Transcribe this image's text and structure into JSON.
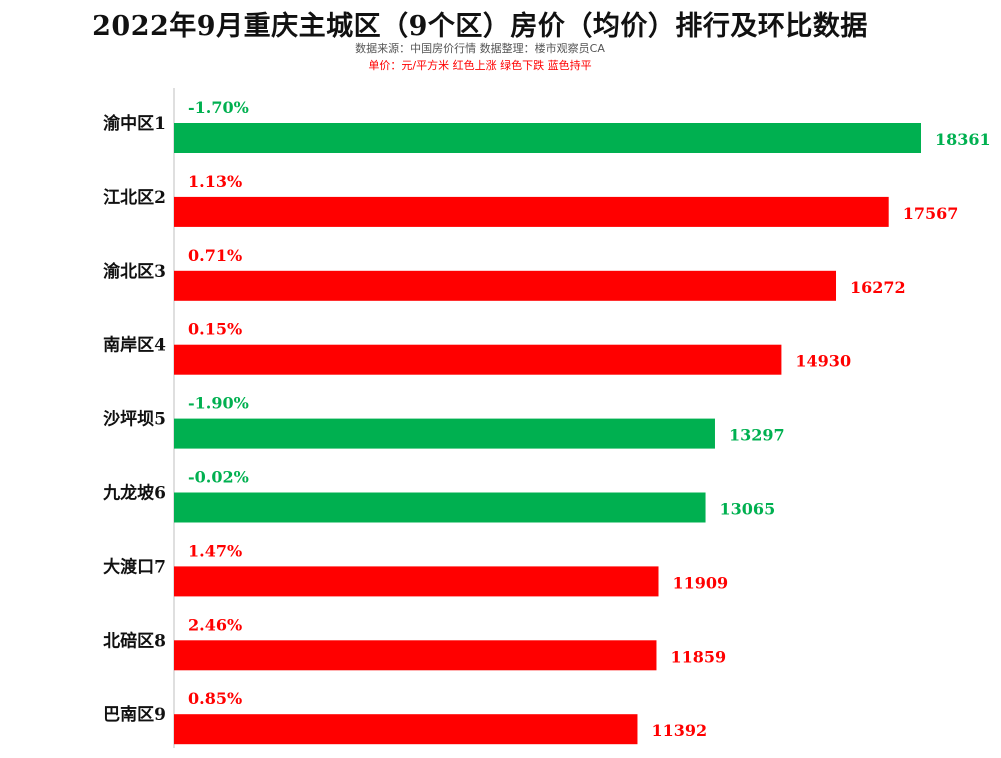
{
  "header": {
    "title": "2022年9月重庆主城区（9个区）房价（均价）排行及环比数据",
    "subtitle": "数据来源：中国房价行情    数据整理：楼市观察员CA",
    "note": "单价：元/平方米   红色上涨  绿色下跌  蓝色持平"
  },
  "colors": {
    "up": "#ff0000",
    "down": "#00b050",
    "flat": "#0070c0"
  },
  "chart_data": {
    "type": "bar",
    "orientation": "horizontal",
    "title": "2022年9月重庆主城区（9个区）房价（均价）排行及环比数据",
    "categories": [
      "渝中区1",
      "江北区2",
      "渝北区3",
      "南岸区4",
      "沙坪坝5",
      "九龙坡6",
      "大渡口7",
      "北碚区8",
      "巴南区9"
    ],
    "values": [
      18361,
      17567,
      16272,
      14930,
      13297,
      13065,
      11909,
      11859,
      11392
    ],
    "change_labels": [
      "-1.70%",
      "1.13%",
      "0.71%",
      "0.15%",
      "-1.90%",
      "-0.02%",
      "1.47%",
      "2.46%",
      "0.85%"
    ],
    "trend": [
      "down",
      "up",
      "up",
      "up",
      "down",
      "down",
      "up",
      "up",
      "up"
    ],
    "xlim": [
      0,
      18361
    ],
    "grid": false,
    "legend": "none"
  }
}
